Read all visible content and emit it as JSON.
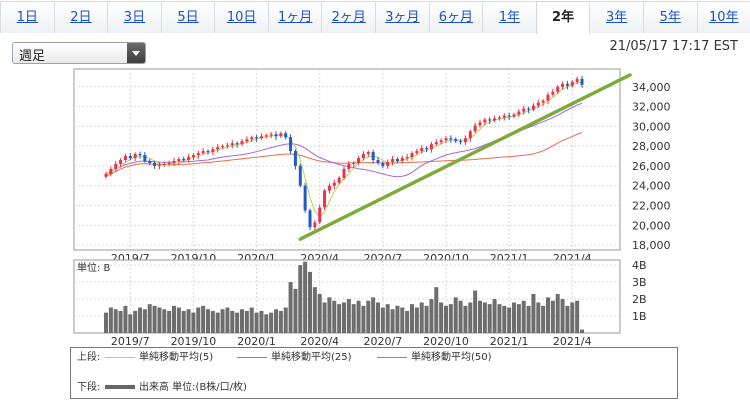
{
  "tabs": [
    {
      "label": "1日",
      "active": false
    },
    {
      "label": "2日",
      "active": false
    },
    {
      "label": "3日",
      "active": false
    },
    {
      "label": "5日",
      "active": false
    },
    {
      "label": "10日",
      "active": false
    },
    {
      "label": "1ヶ月",
      "active": false
    },
    {
      "label": "2ヶ月",
      "active": false
    },
    {
      "label": "3ヶ月",
      "active": false
    },
    {
      "label": "6ヶ月",
      "active": false
    },
    {
      "label": "1年",
      "active": false
    },
    {
      "label": "2年",
      "active": true
    },
    {
      "label": "3年",
      "active": false
    },
    {
      "label": "5年",
      "active": false
    },
    {
      "label": "10年",
      "active": false
    }
  ],
  "period_select": {
    "value": "週足"
  },
  "timestamp": "21/05/17 17:17 EST",
  "colors": {
    "up": "#e8334a",
    "down": "#1e5bc6",
    "ma5": "#b9cf5a",
    "ma25": "#a467e0",
    "ma50": "#e4704a",
    "trendline": "#7cab3b",
    "volume": "#6e6e6e"
  },
  "chart_data": [
    {
      "type": "line",
      "panel": "price",
      "y_ticks": [
        "34,000",
        "32,000",
        "30,000",
        "28,000",
        "26,000",
        "24,000",
        "22,000",
        "20,000",
        "18,000"
      ],
      "ylim": [
        17500,
        35800
      ],
      "x_ticks": [
        "2019/7",
        "2019/10",
        "2020/1",
        "2020/4",
        "2020/7",
        "2020/10",
        "2021/1",
        "2021/4"
      ],
      "weekly_close": [
        25200,
        25700,
        26200,
        26600,
        27000,
        26800,
        27200,
        27100,
        26500,
        26300,
        26000,
        26100,
        26200,
        26300,
        26500,
        26700,
        26600,
        26900,
        27100,
        27300,
        27500,
        27400,
        27700,
        27900,
        28000,
        28100,
        28300,
        28200,
        28500,
        28700,
        28900,
        28800,
        29000,
        29100,
        29200,
        29000,
        29300,
        28900,
        27500,
        26000,
        24000,
        21500,
        19800,
        20300,
        21800,
        23500,
        24000,
        24300,
        24800,
        25700,
        26200,
        26300,
        26800,
        27200,
        27400,
        26600,
        26300,
        26000,
        26400,
        26700,
        26500,
        26800,
        26900,
        27300,
        27500,
        27800,
        27700,
        28200,
        28400,
        28600,
        28800,
        28700,
        28500,
        28400,
        28800,
        29500,
        30100,
        30400,
        30700,
        30600,
        30800,
        30900,
        31100,
        31000,
        31200,
        31500,
        31800,
        31700,
        32100,
        32400,
        32600,
        33200,
        33500,
        34000,
        34300,
        34100,
        34500,
        34800,
        34200
      ],
      "trendline": {
        "from": {
          "x": "2020/3",
          "y": 18600
        },
        "to": {
          "x": "2021/5",
          "y": 35200
        }
      },
      "series": [
        {
          "name": "単純移動平均(5)"
        },
        {
          "name": "単純移動平均(25)"
        },
        {
          "name": "単純移動平均(50)"
        }
      ]
    },
    {
      "type": "bar",
      "panel": "volume",
      "unit_label": "単位: B",
      "y_ticks": [
        "4B",
        "3B",
        "2B",
        "1B"
      ],
      "ylim": [
        0,
        4.3
      ],
      "values": [
        1.2,
        1.5,
        1.4,
        1.3,
        1.6,
        1.1,
        1.3,
        1.5,
        1.4,
        1.7,
        1.6,
        1.5,
        1.4,
        1.3,
        1.6,
        1.5,
        1.3,
        1.4,
        1.2,
        1.5,
        1.6,
        1.4,
        1.3,
        1.2,
        1.4,
        1.5,
        1.3,
        1.2,
        1.4,
        1.3,
        1.5,
        1.2,
        1.3,
        1.1,
        1.2,
        1.4,
        1.3,
        1.5,
        3.0,
        2.6,
        4.0,
        4.2,
        3.6,
        2.7,
        2.3,
        1.8,
        2.1,
        1.9,
        1.7,
        1.8,
        2.0,
        1.7,
        1.9,
        1.6,
        1.9,
        2.1,
        1.8,
        1.5,
        1.7,
        1.4,
        1.6,
        1.5,
        1.3,
        1.7,
        1.5,
        1.8,
        1.6,
        2.0,
        2.7,
        1.8,
        1.6,
        1.7,
        2.1,
        1.9,
        1.6,
        1.8,
        2.5,
        1.9,
        1.8,
        1.7,
        2.0,
        1.7,
        1.6,
        1.5,
        1.8,
        1.7,
        1.9,
        1.6,
        2.3,
        1.8,
        1.6,
        2.1,
        1.9,
        2.3,
        2.0,
        1.6,
        1.8,
        1.9,
        0.2
      ]
    }
  ],
  "legend": {
    "top_label": "上段:",
    "bottom_label": "下段:",
    "volume_label": "出来高 単位:(B株/口/枚)"
  }
}
